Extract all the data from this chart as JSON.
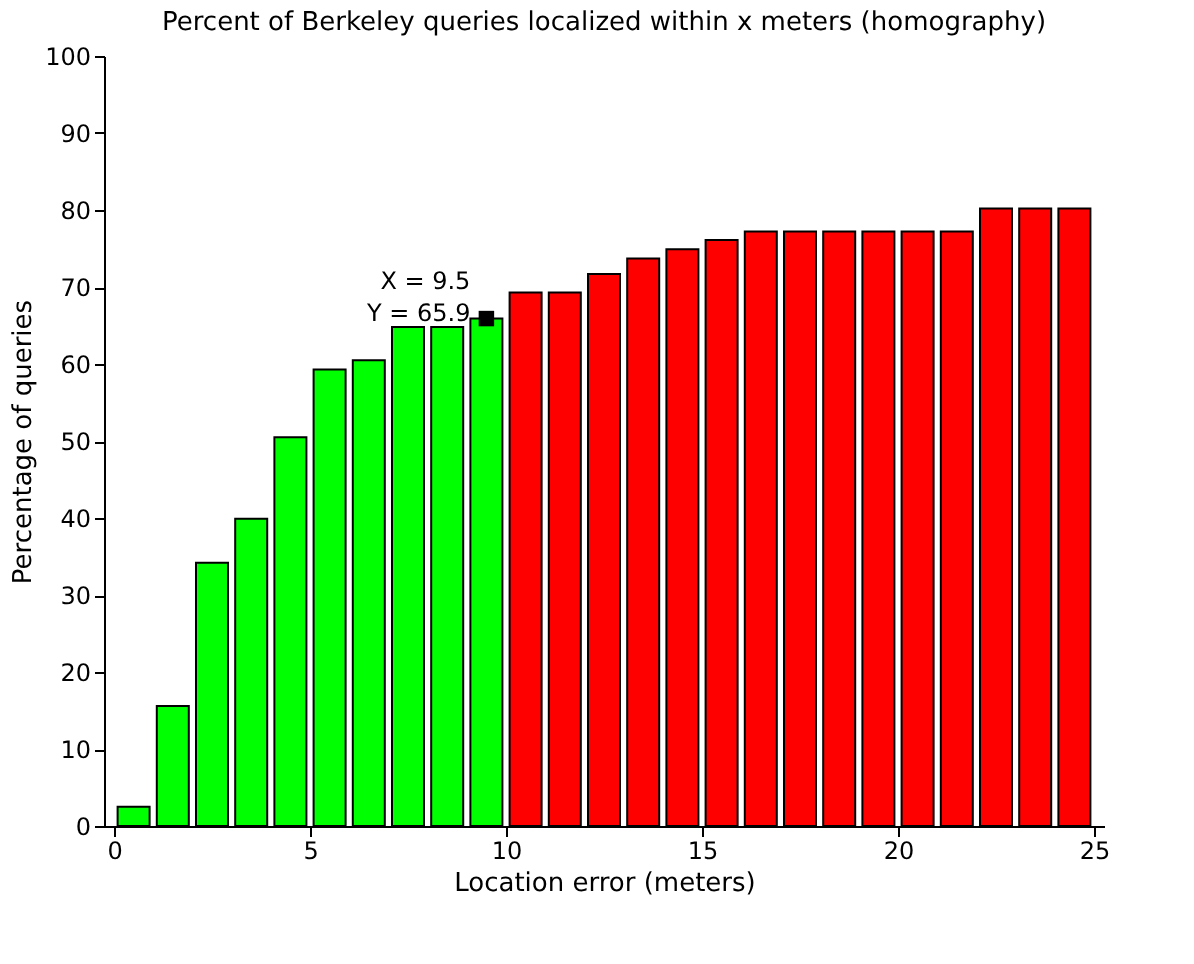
{
  "chart_data": {
    "type": "bar",
    "title": "Percent of Berkeley queries localized within x meters (homography)",
    "xlabel": "Location error (meters)",
    "ylabel": "Percentage of queries",
    "x": [
      0.5,
      1.5,
      2.5,
      3.5,
      4.5,
      5.5,
      6.5,
      7.5,
      8.5,
      9.5,
      10.5,
      11.5,
      12.5,
      13.5,
      14.5,
      15.5,
      16.5,
      17.5,
      18.5,
      19.5,
      20.5,
      21.5,
      22.5,
      23.5,
      24.5
    ],
    "values": [
      2.5,
      15.6,
      34.2,
      39.9,
      50.5,
      59.3,
      60.5,
      64.8,
      64.8,
      65.9,
      69.3,
      69.3,
      71.7,
      73.7,
      74.9,
      76.1,
      77.2,
      77.2,
      77.2,
      77.2,
      77.2,
      77.2,
      80.2,
      80.2,
      80.2
    ],
    "colors": [
      "#00ff00",
      "#00ff00",
      "#00ff00",
      "#00ff00",
      "#00ff00",
      "#00ff00",
      "#00ff00",
      "#00ff00",
      "#00ff00",
      "#00ff00",
      "#ff0000",
      "#ff0000",
      "#ff0000",
      "#ff0000",
      "#ff0000",
      "#ff0000",
      "#ff0000",
      "#ff0000",
      "#ff0000",
      "#ff0000",
      "#ff0000",
      "#ff0000",
      "#ff0000",
      "#ff0000",
      "#ff0000"
    ],
    "xlim": [
      0,
      25
    ],
    "xticks": [
      0,
      5,
      10,
      15,
      20,
      25
    ],
    "ylim": [
      0,
      100
    ],
    "yticks": [
      0,
      10,
      20,
      30,
      40,
      50,
      60,
      70,
      80,
      90,
      100
    ],
    "grid": false,
    "annotations": [
      {
        "text": "X = 9.5\nY = 65.9",
        "x": 9.5,
        "y": 65.9
      }
    ]
  }
}
